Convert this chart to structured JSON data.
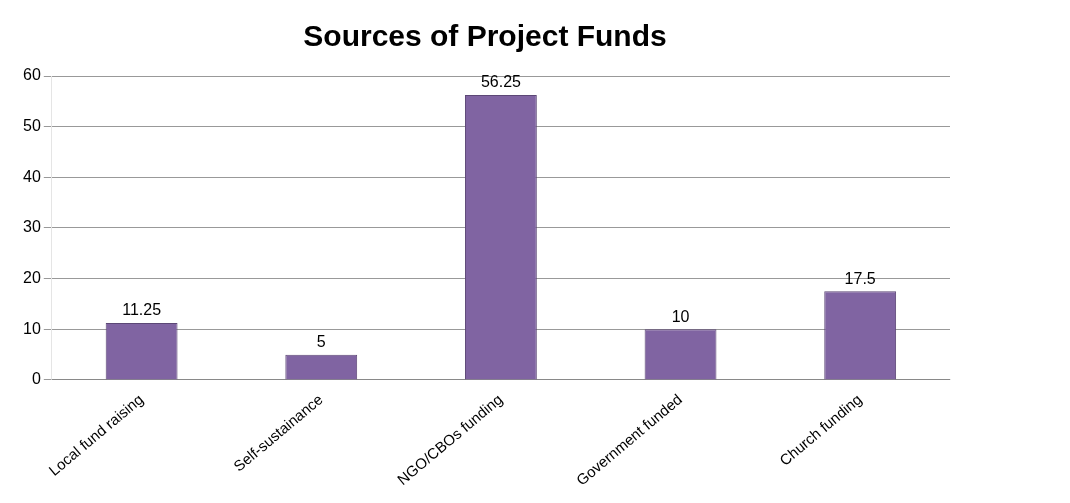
{
  "chart_data": {
    "type": "bar",
    "title": "Sources of Project Funds",
    "categories": [
      "Local fund raising",
      "Self-sustainance",
      "NGO/CBOs funding",
      "Government funded",
      "Church funding"
    ],
    "values": [
      11.25,
      5,
      56.25,
      10,
      17.5
    ],
    "color": "#8064a2",
    "ylim": [
      0,
      60
    ],
    "yticks": [
      0,
      10,
      20,
      30,
      40,
      50,
      60
    ],
    "grid": "y",
    "data_labels": true,
    "legend": false
  }
}
